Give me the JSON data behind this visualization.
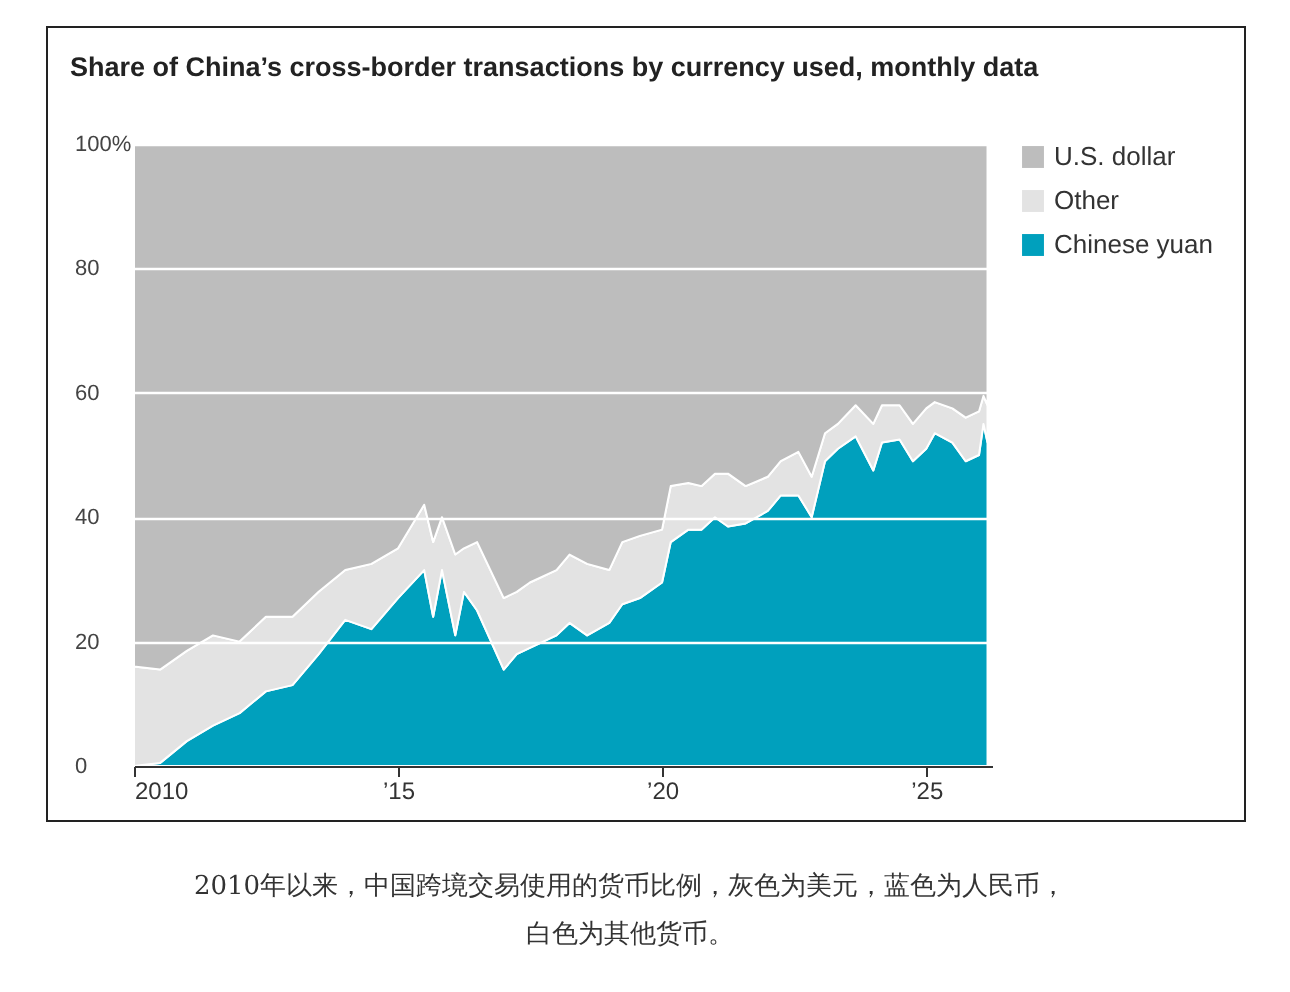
{
  "chart_data": {
    "type": "area",
    "stacked": true,
    "title": "Share of China’s cross-border transactions by currency used, monthly data",
    "x": [
      "2010-01",
      "2010-07",
      "2011-01",
      "2011-07",
      "2012-01",
      "2012-07",
      "2013-01",
      "2013-07",
      "2014-01",
      "2014-07",
      "2015-01",
      "2015-07",
      "2015-09",
      "2015-11",
      "2016-02",
      "2016-04",
      "2016-07",
      "2017-01",
      "2017-04",
      "2017-07",
      "2018-01",
      "2018-04",
      "2018-08",
      "2019-01",
      "2019-04",
      "2019-08",
      "2020-01",
      "2020-03",
      "2020-07",
      "2020-10",
      "2021-01",
      "2021-04",
      "2021-08",
      "2022-01",
      "2022-04",
      "2022-08",
      "2022-11",
      "2023-02",
      "2023-05",
      "2023-09",
      "2024-01",
      "2024-03",
      "2024-07",
      "2024-10",
      "2025-01",
      "2025-03",
      "2025-07",
      "2025-10",
      "2026-01",
      "2026-02",
      "2026-03"
    ],
    "series": [
      {
        "name": "Chinese yuan",
        "color": "#00a0bd",
        "values": [
          0,
          0.5,
          4,
          6.5,
          8.5,
          12,
          13,
          18,
          23.5,
          22,
          27,
          31.5,
          24,
          31.5,
          21,
          28,
          25,
          15.5,
          18,
          19,
          21,
          23,
          21,
          23,
          26,
          27,
          29.5,
          36,
          38,
          38,
          40,
          38.5,
          39,
          41,
          43.5,
          43.5,
          40,
          49,
          51,
          53,
          47.5,
          52,
          52.5,
          49,
          51,
          53.5,
          52,
          49,
          50,
          55,
          52
        ]
      },
      {
        "name": "Other",
        "color": "#e3e3e3",
        "values": [
          16,
          15,
          14.5,
          14.5,
          11.5,
          12,
          11,
          10,
          8,
          10.5,
          8,
          10.5,
          12,
          8.5,
          13,
          7,
          11,
          11.5,
          10,
          10.5,
          10.5,
          11,
          11.5,
          8.5,
          10,
          10,
          8.5,
          9,
          7.5,
          7,
          7,
          8.5,
          6,
          5.5,
          5.5,
          7,
          6.5,
          4.5,
          4,
          5,
          7.5,
          6,
          5.5,
          6,
          6.5,
          5,
          5.5,
          7,
          7,
          4.5,
          6
        ]
      },
      {
        "name": "U.S. dollar",
        "color": "#bdbdbd",
        "values": [
          84,
          84.5,
          81.5,
          79,
          80,
          76,
          76,
          72,
          68.5,
          67.5,
          65,
          58,
          64,
          60,
          66,
          65,
          64,
          73,
          72,
          70.5,
          68.5,
          66,
          67.5,
          68.5,
          64,
          63,
          62,
          55,
          54.5,
          55,
          53,
          53,
          55,
          53.5,
          51,
          49.5,
          53.5,
          46.5,
          45,
          42,
          45,
          42,
          42,
          45,
          42.5,
          41.5,
          42.5,
          44,
          43,
          40.5,
          42
        ]
      }
    ],
    "xlim": [
      "2010-01",
      "2026-04"
    ],
    "xticks": [
      "2010",
      {
        "value": "2015",
        "label": "’15"
      },
      {
        "value": "2020",
        "label": "’20"
      },
      {
        "value": "2025",
        "label": "’25"
      }
    ],
    "ylim": [
      0,
      100
    ],
    "yticks": [
      0,
      20,
      40,
      60,
      80,
      {
        "value": 100,
        "label": "100%"
      }
    ],
    "grid": "y",
    "legend": "right",
    "annotations": [
      "2010年以来，中国跨境交易使用的货币比例，灰色为美元，蓝色为人民币，白色为其他货币。"
    ]
  }
}
